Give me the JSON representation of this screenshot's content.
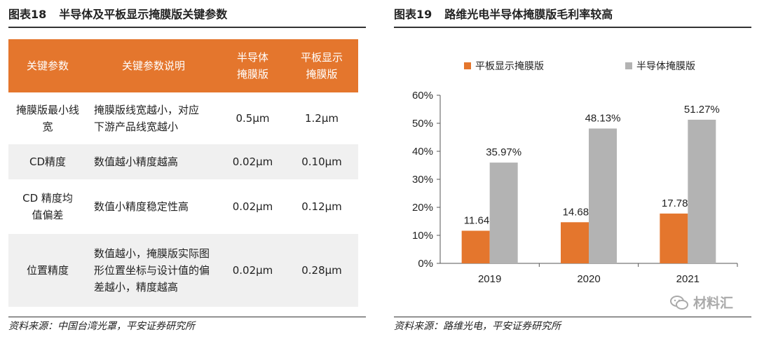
{
  "left": {
    "fig_num": "图表18",
    "fig_title": "半导体及平板显示掩膜版关键参数",
    "table": {
      "headers": [
        "关键参数",
        "关键参数说明",
        "半导体掩膜版",
        "平板显示掩膜版"
      ],
      "rows": [
        {
          "param": "掩膜版最小线宽",
          "desc": "掩膜版线宽越小，对应下游产品线宽越小",
          "semi": "0.5μm",
          "flat": "1.2μm"
        },
        {
          "param": "CD精度",
          "desc": "数值越小精度越高",
          "semi": "0.02μm",
          "flat": "0.10μm"
        },
        {
          "param": "CD 精度均值偏差",
          "desc": "数值小精度稳定性高",
          "semi": "0.02μm",
          "flat": "0.12μm"
        },
        {
          "param": "位置精度",
          "desc": "数值越小，掩膜版实际图形位置坐标与设计值的偏差越小，精度越高",
          "semi": "0.02μm",
          "flat": "0.28μm"
        }
      ]
    },
    "source": "资料来源：中国台湾光罩，平安证券研究所"
  },
  "right": {
    "fig_num": "图表19",
    "fig_title": "路维光电半导体掩膜版毛利率较高",
    "source": "资料来源：路维光电，平安证券研究所",
    "watermark": "材料汇",
    "watermark_icon": "wechat-icon"
  },
  "chart_data": {
    "type": "bar",
    "categories": [
      "2019",
      "2020",
      "2021"
    ],
    "series": [
      {
        "name": "平板显示掩膜版",
        "values": [
          11.64,
          14.68,
          17.78
        ],
        "color": "#e4762d"
      },
      {
        "name": "半导体掩膜版",
        "values": [
          35.97,
          48.13,
          51.27
        ],
        "color": "#b3b3b3"
      }
    ],
    "data_labels": [
      [
        "11.64%",
        "14.68%",
        "17.78%"
      ],
      [
        "35.97%",
        "48.13%",
        "51.27%"
      ]
    ],
    "yticks": [
      "0%",
      "10%",
      "20%",
      "30%",
      "40%",
      "50%",
      "60%"
    ],
    "ylim": [
      0,
      60
    ],
    "legend_position": "top",
    "grid": false
  }
}
